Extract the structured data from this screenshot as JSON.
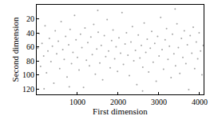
{
  "chart_data": {
    "type": "scatter",
    "x_label": "First dimension",
    "y_label": "Second dimension",
    "x": [
      25,
      60,
      95,
      130,
      170,
      205,
      240,
      275,
      310,
      350,
      385,
      420,
      455,
      490,
      530,
      565,
      600,
      640,
      675,
      710,
      745,
      785,
      820,
      855,
      890,
      930,
      965,
      1000,
      1040,
      1075,
      1110,
      1150,
      1185,
      1220,
      1255,
      1295,
      1330,
      1365,
      1400,
      1440,
      1475,
      1510,
      1550,
      1585,
      1620,
      1660,
      1695,
      1730,
      1765,
      1805,
      1840,
      1875,
      1915,
      1950,
      1985,
      2020,
      2060,
      2095,
      2130,
      2170,
      2205,
      2240,
      2275,
      2315,
      2350,
      2385,
      2425,
      2460,
      2495,
      2535,
      2570,
      2605,
      2640,
      2680,
      2715,
      2750,
      2790,
      2825,
      2860,
      2900,
      2935,
      2970,
      3005,
      3045,
      3080,
      3115,
      3155,
      3190,
      3225,
      3260,
      3300,
      3335,
      3370,
      3410,
      3445,
      3480,
      3515,
      3555,
      3590,
      3625,
      3665,
      3700,
      3735,
      3770,
      3810,
      3845,
      3880,
      3920,
      3955,
      3990,
      4025,
      4060,
      4090,
      180,
      1500,
      2600,
      3400,
      800
    ],
    "values": [
      62,
      41,
      88,
      55,
      73,
      30,
      97,
      66,
      48,
      81,
      59,
      112,
      37,
      70,
      52,
      91,
      24,
      64,
      78,
      45,
      103,
      57,
      35,
      84,
      68,
      15,
      50,
      75,
      93,
      42,
      61,
      118,
      33,
      79,
      54,
      87,
      46,
      71,
      28,
      99,
      63,
      39,
      83,
      58,
      107,
      44,
      74,
      21,
      66,
      90,
      51,
      36,
      77,
      60,
      95,
      47,
      69,
      11,
      85,
      56,
      40,
      72,
      101,
      53,
      31,
      80,
      65,
      114,
      43,
      76,
      58,
      89,
      26,
      68,
      49,
      96,
      62,
      38,
      82,
      55,
      109,
      45,
      73,
      18,
      64,
      92,
      50,
      34,
      78,
      59,
      104,
      42,
      70,
      87,
      27,
      61,
      98,
      48,
      75,
      37,
      84,
      57,
      121,
      44,
      69,
      32,
      91,
      53,
      77,
      40,
      66,
      100,
      58,
      120,
      8,
      123,
      6,
      117
    ],
    "color": "#a6a6a6",
    "marker": "circle",
    "xlim": [
      0,
      4100
    ],
    "xticks": [
      1000,
      2000,
      3000,
      4000
    ],
    "ylim": [
      128,
      0
    ],
    "yticks": [
      20,
      40,
      60,
      80,
      100,
      120
    ],
    "grid": false
  }
}
